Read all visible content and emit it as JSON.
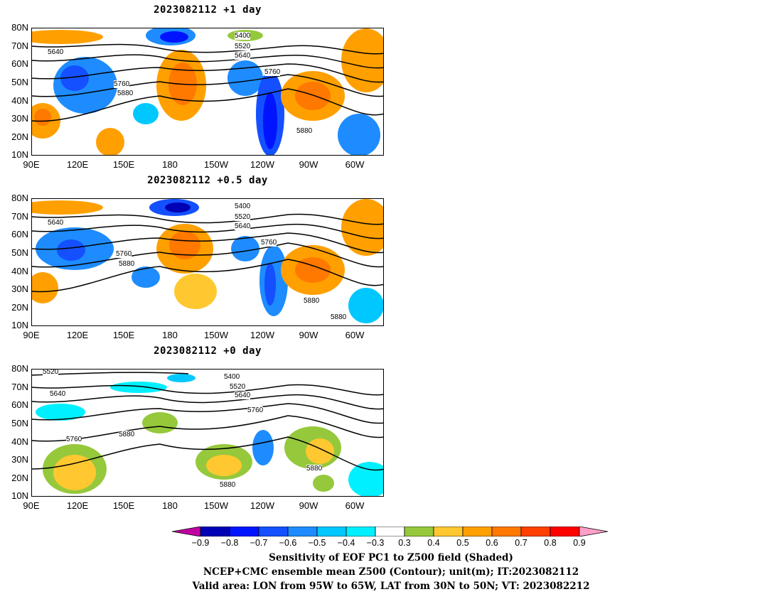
{
  "panels": [
    {
      "title": "2023082112 +1 day",
      "contour_labels": [
        "5400",
        "5520",
        "5640",
        "5640",
        "5760",
        "5760",
        "5880",
        "5880"
      ]
    },
    {
      "title": "2023082112 +0.5 day",
      "contour_labels": [
        "5400",
        "5520",
        "5640",
        "5640",
        "5760",
        "5760",
        "5880",
        "5880",
        "5880"
      ]
    },
    {
      "title": "2023082112 +0 day",
      "contour_labels": [
        "5520",
        "5400",
        "5520",
        "5640",
        "5640",
        "5760",
        "5760",
        "5880",
        "5880",
        "5880"
      ]
    }
  ],
  "lat_labels": [
    "80N",
    "70N",
    "60N",
    "50N",
    "40N",
    "30N",
    "20N",
    "10N"
  ],
  "lon_labels": [
    "90E",
    "120E",
    "150E",
    "180",
    "150W",
    "120W",
    "90W",
    "60W"
  ],
  "colorbar": {
    "levels": [
      "−0.9",
      "−0.8",
      "−0.7",
      "−0.6",
      "−0.5",
      "−0.4",
      "−0.3",
      "0.3",
      "0.4",
      "0.5",
      "0.6",
      "0.7",
      "0.8",
      "0.9"
    ],
    "colors": [
      "#c000a0",
      "#0000b4",
      "#0014ff",
      "#1450ff",
      "#1e8cff",
      "#00c8ff",
      "#00f0ff",
      "#ffffff",
      "#96c83c",
      "#ffc830",
      "#ffa000",
      "#ff7800",
      "#ff4000",
      "#ff0000",
      "#ffa0c8"
    ]
  },
  "captions": [
    "Sensitivity of EOF PC1 to Z500 field (Shaded)",
    "NCEP+CMC ensemble mean Z500 (Contour); unit(m); IT:2023082112",
    "Valid area: LON from 95W to 65W, LAT from 30N to 50N; VT: 2023082212"
  ]
}
